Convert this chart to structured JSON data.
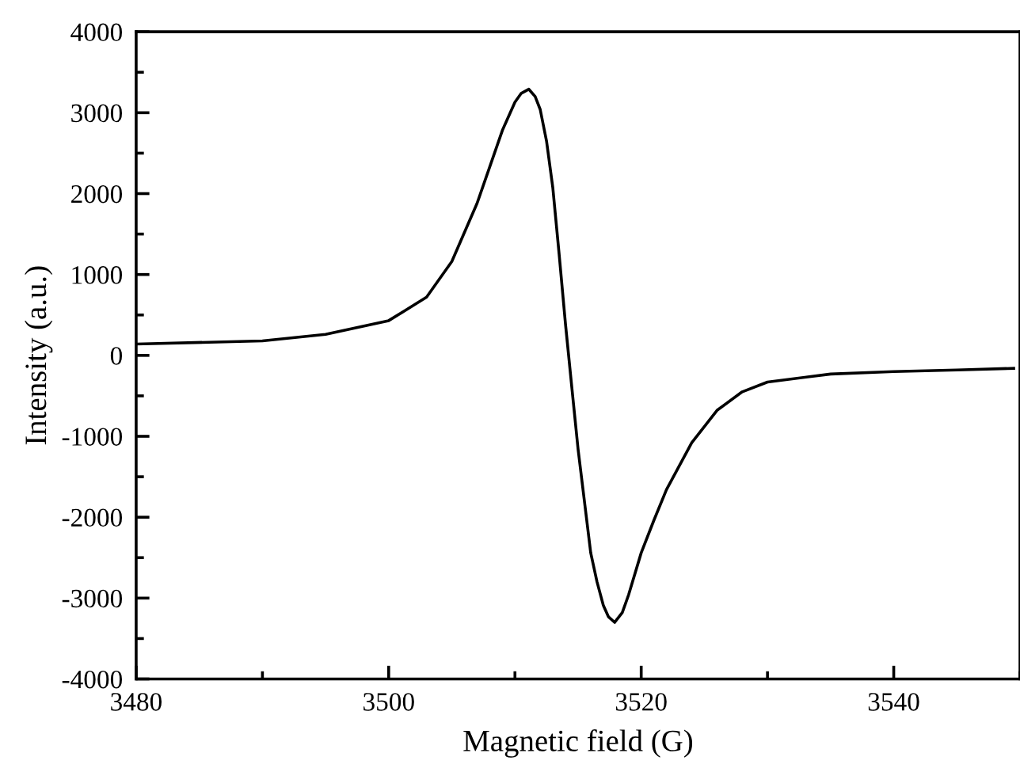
{
  "chart_data": {
    "type": "line",
    "xlabel": "Magnetic field (G)",
    "ylabel": "Intensity (a.u.)",
    "x": [
      3480,
      3490,
      3495,
      3500,
      3503,
      3505,
      3507,
      3508,
      3509,
      3510,
      3510.5,
      3511.1,
      3511.6,
      3512,
      3512.5,
      3513,
      3513.5,
      3514,
      3514.5,
      3515,
      3516,
      3516.5,
      3517,
      3517.4,
      3517.9,
      3518.5,
      3519,
      3520,
      3521,
      3522,
      3524,
      3526,
      3528,
      3530,
      3535,
      3540,
      3545,
      3549.5
    ],
    "series": [
      {
        "color": "#000000",
        "values": [
          140,
          180,
          260,
          430,
          720,
          1160,
          1880,
          2330,
          2780,
          3130,
          3240,
          3290,
          3200,
          3040,
          2650,
          2070,
          1250,
          390,
          -390,
          -1160,
          -2440,
          -2800,
          -3090,
          -3230,
          -3300,
          -3180,
          -2960,
          -2440,
          -2040,
          -1660,
          -1080,
          -680,
          -450,
          -330,
          -230,
          -200,
          -180,
          -160
        ]
      }
    ],
    "xlim": [
      3480,
      3550
    ],
    "xticks": [
      3480,
      3500,
      3520,
      3540
    ],
    "ylim": [
      -4000,
      4000
    ],
    "yticks": [
      -4000,
      -3000,
      -2000,
      -1000,
      0,
      1000,
      2000,
      3000,
      4000
    ],
    "grid": false,
    "legend": false,
    "marker": "none",
    "line_style": "solid"
  }
}
